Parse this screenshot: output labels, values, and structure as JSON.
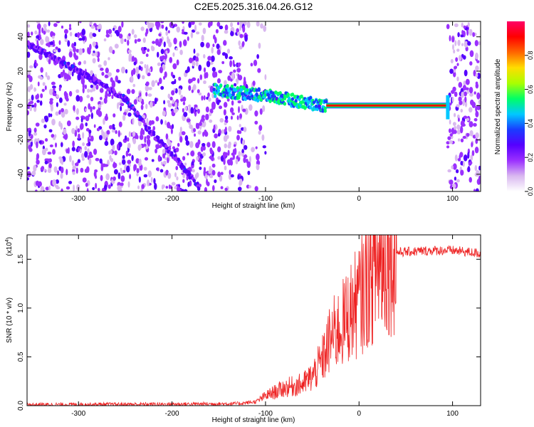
{
  "title": "C2E5.2025.316.04.26.G12",
  "chart_data": [
    {
      "type": "heatmap",
      "xlabel": "Height of straight line (km)",
      "ylabel": "Frequency (Hz)",
      "xlim": [
        -355,
        130
      ],
      "ylim": [
        -50,
        49
      ],
      "xticks": [
        -300,
        -200,
        -100,
        0,
        100
      ],
      "yticks": [
        -40,
        -20,
        0,
        20,
        40
      ],
      "colorbar": {
        "label": "Normalized spectral amplitude",
        "range": [
          0,
          1
        ],
        "ticks": [
          "0.0",
          "0.2",
          "0.4",
          "0.6",
          "0.8"
        ],
        "tick_values": [
          0,
          0.2,
          0.4,
          0.6,
          0.8
        ],
        "colors": [
          "#ffffff",
          "#d9b8f0",
          "#9b30ff",
          "#5500ff",
          "#1a3cff",
          "#00c8ff",
          "#00ff66",
          "#aaff00",
          "#ffdd00",
          "#ff6600",
          "#ff0000",
          "#ff0066"
        ]
      },
      "features": [
        {
          "name": "descending trace",
          "points": [
            [
              -355,
              36
            ],
            [
              -300,
              20
            ],
            [
              -250,
              4
            ],
            [
              -225,
              -14
            ],
            [
              -200,
              -28
            ],
            [
              -170,
              -48
            ]
          ],
          "amplitude": 0.25
        },
        {
          "name": "main signal band",
          "points": [
            [
              -155,
              9
            ],
            [
              -120,
              7
            ],
            [
              -90,
              5
            ],
            [
              -70,
              3
            ],
            [
              -50,
              1
            ],
            [
              -35,
              0
            ]
          ],
          "amplitude": 0.45
        },
        {
          "name": "tone",
          "points": [
            [
              -35,
              0
            ],
            [
              95,
              0
            ]
          ],
          "amplitude": 0.95
        }
      ]
    },
    {
      "type": "line",
      "xlabel": "Height of straight line (km)",
      "ylabel": "SNR (10 * v/v)",
      "y_multiplier": "(x10",
      "y_multiplier_exp": "4",
      "y_multiplier_close": ")",
      "xlim": [
        -355,
        130
      ],
      "ylim": [
        0,
        1.75
      ],
      "xticks": [
        -300,
        -200,
        -100,
        0,
        100
      ],
      "yticks": [
        "0.0",
        "0.5",
        "1.0",
        "1.5"
      ],
      "ytick_values": [
        0,
        0.5,
        1.0,
        1.5
      ],
      "color": "#ff0000",
      "series": [
        {
          "name": "SNR envelope",
          "x": [
            -355,
            -200,
            -130,
            -110,
            -100,
            -80,
            -60,
            -50,
            -40,
            -30,
            -20,
            -10,
            0,
            10,
            20,
            30,
            40,
            60,
            80,
            100,
            130
          ],
          "y": [
            0.01,
            0.015,
            0.02,
            0.04,
            0.1,
            0.18,
            0.22,
            0.3,
            0.45,
            0.7,
            0.8,
            0.95,
            1.08,
            1.28,
            1.45,
            1.55,
            1.57,
            1.58,
            1.59,
            1.59,
            1.56
          ]
        }
      ]
    }
  ]
}
